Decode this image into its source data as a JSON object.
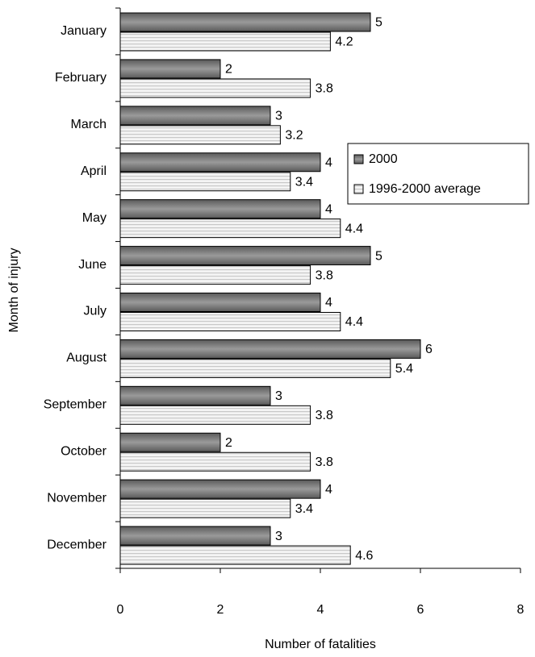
{
  "chart_data": {
    "type": "hbar",
    "categories": [
      "January",
      "February",
      "March",
      "April",
      "May",
      "June",
      "July",
      "August",
      "September",
      "October",
      "November",
      "December"
    ],
    "series": [
      {
        "name": "2000",
        "color": "#808080",
        "values": [
          5,
          2,
          3,
          4,
          4,
          5,
          4,
          6,
          3,
          2,
          4,
          3
        ]
      },
      {
        "name": "1996-2000 average",
        "color": "#e0e0e0",
        "values": [
          4.2,
          3.8,
          3.2,
          3.4,
          4.4,
          3.8,
          4.4,
          5.4,
          3.8,
          3.8,
          3.4,
          4.6
        ]
      }
    ],
    "xlabel": "Number of fatalities",
    "ylabel": "Month of injury",
    "xlim": [
      0,
      8
    ],
    "xticks": [
      0,
      2,
      4,
      6,
      8
    ],
    "legend": "right"
  }
}
